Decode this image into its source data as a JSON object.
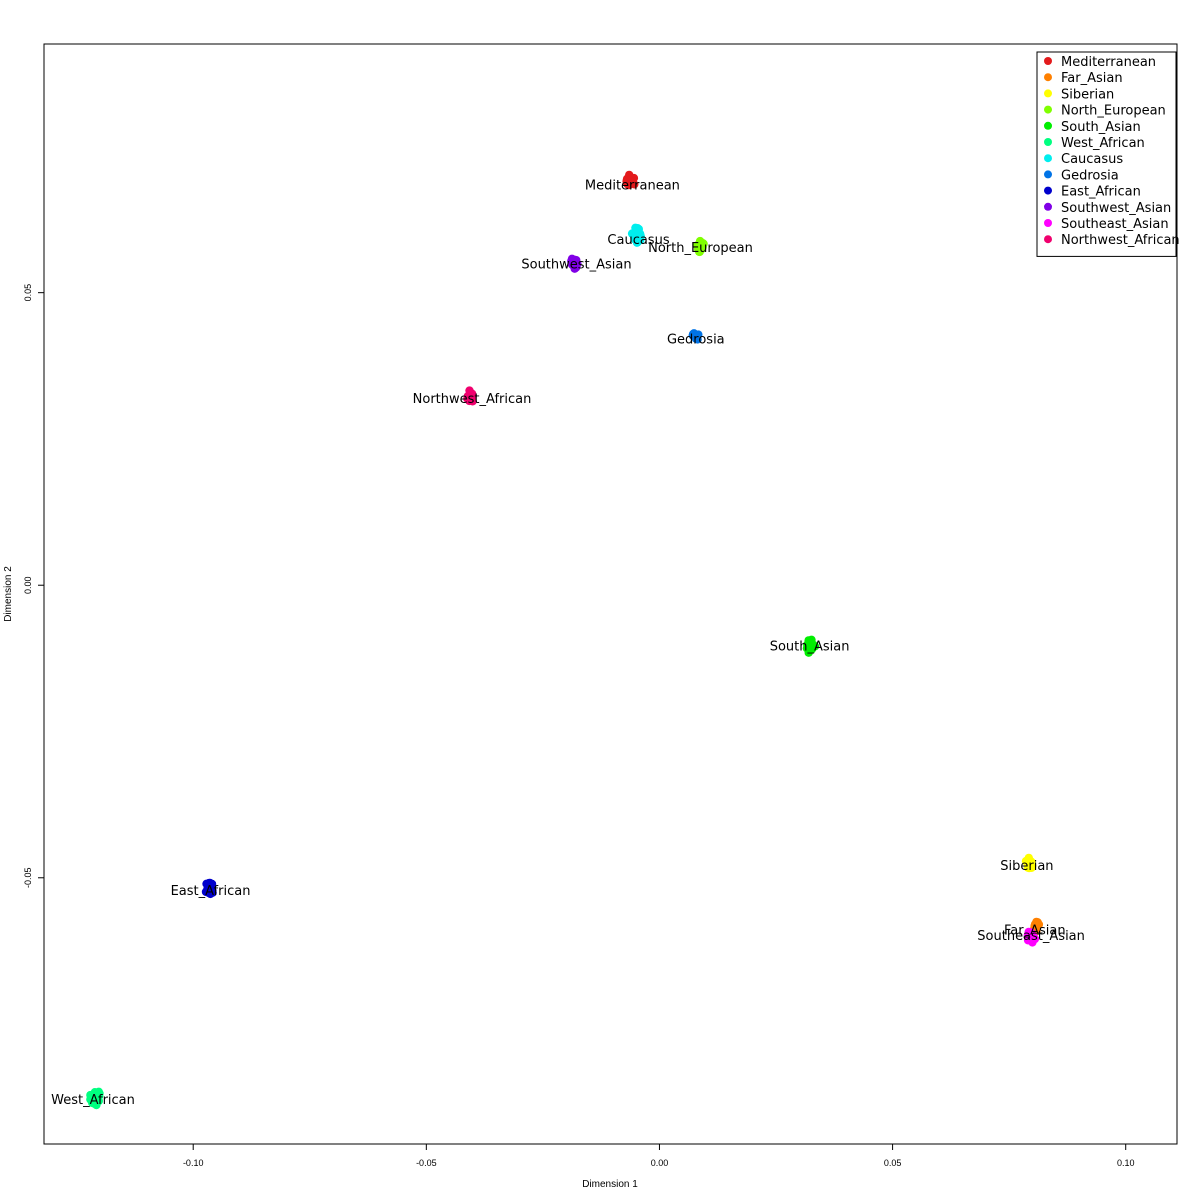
{
  "chart_data": {
    "type": "scatter",
    "xlabel": "Dimension 1",
    "ylabel": "Dimension 2",
    "xlim": [
      -0.132,
      0.111
    ],
    "ylim": [
      -0.0955,
      0.0925
    ],
    "x_ticks": [
      {
        "value": -0.1,
        "label": "-0.10"
      },
      {
        "value": -0.05,
        "label": "-0.05"
      },
      {
        "value": 0.0,
        "label": "0.00"
      },
      {
        "value": 0.05,
        "label": "0.05"
      },
      {
        "value": 0.1,
        "label": "0.10"
      }
    ],
    "y_ticks": [
      {
        "value": -0.05,
        "label": "-0.05"
      },
      {
        "value": 0.0,
        "label": "0.00"
      },
      {
        "value": 0.05,
        "label": "0.05"
      }
    ],
    "legend_position": "top-right",
    "series": [
      {
        "name": "Mediterranean",
        "color": "#E31A1C",
        "center": [
          -0.0063,
          0.069
        ],
        "label_pos": [
          -0.0058,
          0.0685
        ],
        "spread": 0.001,
        "points": 16
      },
      {
        "name": "Far_Asian",
        "color": "#FF8000",
        "center": [
          0.0808,
          -0.0584
        ],
        "label_pos": [
          0.0805,
          -0.0588
        ],
        "spread": 0.0007,
        "points": 10
      },
      {
        "name": "Siberian",
        "color": "#FFFF00",
        "center": [
          0.0793,
          -0.0475
        ],
        "label_pos": [
          0.0788,
          -0.0478
        ],
        "spread": 0.0008,
        "points": 14
      },
      {
        "name": "North_European",
        "color": "#80FF00",
        "center": [
          0.0088,
          0.0578
        ],
        "label_pos": [
          0.0088,
          0.0578
        ],
        "spread": 0.0008,
        "points": 14
      },
      {
        "name": "South_Asian",
        "color": "#00EE00",
        "center": [
          0.0325,
          -0.0105
        ],
        "label_pos": [
          0.0322,
          -0.0103
        ],
        "spread": 0.001,
        "points": 18
      },
      {
        "name": "West_African",
        "color": "#00FF80",
        "center": [
          -0.121,
          -0.0875
        ],
        "label_pos": [
          -0.1215,
          -0.0878
        ],
        "spread": 0.0011,
        "points": 18
      },
      {
        "name": "Caucasus",
        "color": "#00EEEE",
        "center": [
          -0.0048,
          0.0598
        ],
        "label_pos": [
          -0.0045,
          0.0592
        ],
        "spread": 0.0011,
        "points": 18
      },
      {
        "name": "Gedrosia",
        "color": "#0073E6",
        "center": [
          0.0077,
          0.0425
        ],
        "label_pos": [
          0.0078,
          0.0422
        ],
        "spread": 0.0008,
        "points": 12
      },
      {
        "name": "East_African",
        "color": "#0000CC",
        "center": [
          -0.0965,
          -0.0518
        ],
        "label_pos": [
          -0.0963,
          -0.0521
        ],
        "spread": 0.0009,
        "points": 18
      },
      {
        "name": "Southwest_Asian",
        "color": "#8000E6",
        "center": [
          -0.0182,
          0.0551
        ],
        "label_pos": [
          -0.0178,
          0.055
        ],
        "spread": 0.0008,
        "points": 14
      },
      {
        "name": "Southeast_Asian",
        "color": "#FF00FF",
        "center": [
          0.0797,
          -0.0602
        ],
        "label_pos": [
          0.0797,
          -0.0598
        ],
        "spread": 0.0009,
        "points": 16
      },
      {
        "name": "Northwest_African",
        "color": "#F0006E",
        "center": [
          -0.0405,
          0.0323
        ],
        "label_pos": [
          -0.0402,
          0.032
        ],
        "spread": 0.0008,
        "points": 14
      }
    ]
  }
}
